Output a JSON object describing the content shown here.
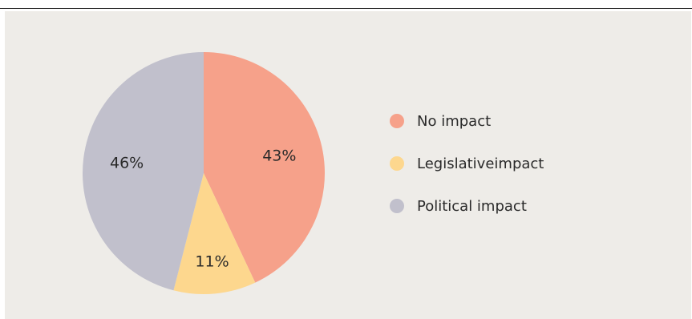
{
  "chart_data": {
    "type": "pie",
    "title": "",
    "start_angle_deg": 0,
    "direction": "clockwise",
    "slices": [
      {
        "label": "No impact",
        "value": 43,
        "display": "43%",
        "color": "#f6a18a"
      },
      {
        "label": "Legislativeimpact",
        "value": 11,
        "display": "11%",
        "color": "#fdd78e"
      },
      {
        "label": "Political impact",
        "value": 46,
        "display": "46%",
        "color": "#c1c0cc"
      }
    ],
    "legend_position": "right"
  }
}
